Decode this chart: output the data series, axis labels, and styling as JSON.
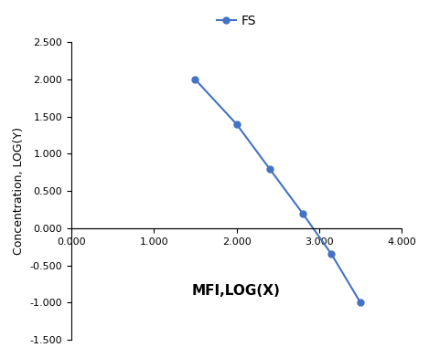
{
  "x": [
    1.5,
    2.0,
    2.4,
    2.8,
    3.15,
    3.5
  ],
  "y": [
    2.0,
    1.4,
    0.8,
    0.2,
    -0.35,
    -1.0
  ],
  "line_color": "#4472C4",
  "marker": "o",
  "marker_size": 5,
  "legend_label": "FS",
  "xlabel": "MFI,LOG(X)",
  "ylabel": "Concentration, LOG(Y)",
  "xlim": [
    0.0,
    4.0
  ],
  "ylim": [
    -1.5,
    2.5
  ],
  "xticks": [
    0.0,
    1.0,
    2.0,
    3.0,
    4.0
  ],
  "yticks": [
    -1.5,
    -1.0,
    -0.5,
    0.0,
    0.5,
    1.0,
    1.5,
    2.0,
    2.5
  ],
  "xlabel_fontsize": 11,
  "ylabel_fontsize": 9,
  "tick_fontsize": 8,
  "legend_fontsize": 10,
  "background_color": "#ffffff"
}
